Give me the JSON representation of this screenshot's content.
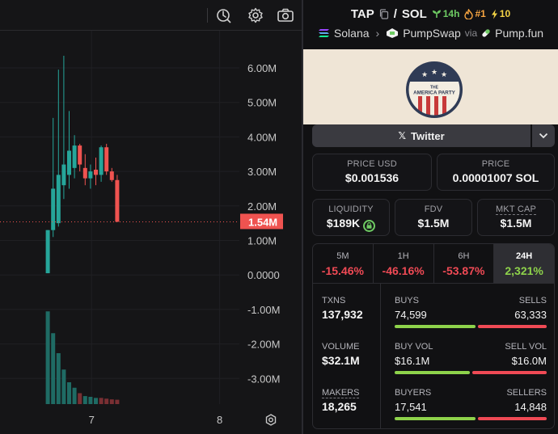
{
  "chart": {
    "price_axis": [
      "6.00M",
      "5.00M",
      "4.00M",
      "3.00M",
      "2.00M",
      "1.00M",
      "0.0000",
      "-1.00M",
      "-2.00M",
      "-3.00M"
    ],
    "current_price_label": "1.54M",
    "time_axis": [
      "7",
      "8"
    ],
    "colors": {
      "up": "#26a69a",
      "down": "#ef5350",
      "price_line": "#ef5350"
    }
  },
  "chart_data": {
    "type": "candlestick",
    "title": "",
    "y_unit": "market cap (M)",
    "ylim": [
      -3.7,
      6.9
    ],
    "xlim": [
      0,
      42
    ],
    "x_ticks": [
      {
        "label": "7",
        "x": 12
      },
      {
        "label": "8",
        "x": 36
      }
    ],
    "candles": [
      {
        "x": 1,
        "open": 0.05,
        "high": 1.3,
        "low": 0.05,
        "close": 1.3
      },
      {
        "x": 2,
        "open": 1.3,
        "high": 4.55,
        "low": 1.1,
        "close": 2.5
      },
      {
        "x": 3,
        "open": 1.5,
        "high": 5.95,
        "low": 1.4,
        "close": 2.9
      },
      {
        "x": 4,
        "open": 2.6,
        "high": 6.35,
        "low": 2.2,
        "close": 3.2
      },
      {
        "x": 5,
        "open": 2.9,
        "high": 4.75,
        "low": 2.5,
        "close": 3.6
      },
      {
        "x": 6,
        "open": 3.1,
        "high": 4.05,
        "low": 2.8,
        "close": 3.75
      },
      {
        "x": 7,
        "open": 3.75,
        "high": 3.8,
        "low": 3.0,
        "close": 3.2
      },
      {
        "x": 8,
        "open": 3.1,
        "high": 3.5,
        "low": 2.6,
        "close": 2.8
      },
      {
        "x": 9,
        "open": 2.8,
        "high": 3.2,
        "low": 2.5,
        "close": 3.0
      },
      {
        "x": 10,
        "open": 3.05,
        "high": 3.4,
        "low": 2.6,
        "close": 2.9
      },
      {
        "x": 11,
        "open": 2.9,
        "high": 3.75,
        "low": 2.7,
        "close": 3.7
      },
      {
        "x": 12,
        "open": 3.7,
        "high": 3.8,
        "low": 2.9,
        "close": 3.0
      },
      {
        "x": 13,
        "open": 3.0,
        "high": 3.1,
        "low": 2.7,
        "close": 2.75
      },
      {
        "x": 14,
        "open": 2.75,
        "high": 2.9,
        "low": 1.54,
        "close": 1.54
      }
    ],
    "volume": [
      {
        "x": 1,
        "value": 2.55,
        "direction": "up"
      },
      {
        "x": 2,
        "value": 1.95,
        "direction": "up"
      },
      {
        "x": 3,
        "value": 1.4,
        "direction": "up"
      },
      {
        "x": 4,
        "value": 0.95,
        "direction": "up"
      },
      {
        "x": 5,
        "value": 0.6,
        "direction": "up"
      },
      {
        "x": 6,
        "value": 0.45,
        "direction": "up"
      },
      {
        "x": 7,
        "value": 0.3,
        "direction": "down"
      },
      {
        "x": 8,
        "value": 0.22,
        "direction": "up"
      },
      {
        "x": 9,
        "value": 0.2,
        "direction": "up"
      },
      {
        "x": 10,
        "value": 0.17,
        "direction": "up"
      },
      {
        "x": 11,
        "value": 0.17,
        "direction": "down"
      },
      {
        "x": 12,
        "value": 0.15,
        "direction": "down"
      },
      {
        "x": 13,
        "value": 0.13,
        "direction": "down"
      },
      {
        "x": 14,
        "value": 0.12,
        "direction": "down"
      }
    ],
    "current_value": 1.54
  },
  "pair": {
    "base": "TAP",
    "quote": "SOL",
    "age": "14h",
    "rank": "#1",
    "boosts": "10",
    "chain": "Solana",
    "dex": "PumpSwap",
    "via_label": "via",
    "launchpad": "Pump.fun",
    "logo_text": "THE AMERICA PARTY"
  },
  "links": {
    "twitter": "Twitter"
  },
  "prices": {
    "usd_label": "PRICE USD",
    "usd_value": "$0.001536",
    "native_label": "PRICE",
    "native_value": "0.00001007 SOL"
  },
  "metrics": {
    "liquidity_label": "LIQUIDITY",
    "liquidity_value": "$189K",
    "fdv_label": "FDV",
    "fdv_value": "$1.5M",
    "mktcap_label": "MKT CAP",
    "mktcap_value": "$1.5M"
  },
  "timeframes": [
    {
      "label": "5M",
      "value": "-15.46%"
    },
    {
      "label": "1H",
      "value": "-46.16%"
    },
    {
      "label": "6H",
      "value": "-53.87%"
    },
    {
      "label": "24H",
      "value": "2,321%"
    }
  ],
  "txns": {
    "txns_label": "TXNS",
    "txns_value": "137,932",
    "volume_label": "VOLUME",
    "volume_value": "$32.1M",
    "makers_label": "MAKERS",
    "makers_value": "18,265",
    "buys_label": "BUYS",
    "buys_value": "74,599",
    "sells_label": "SELLS",
    "sells_value": "63,333",
    "buy_vol_label": "BUY VOL",
    "buy_vol_value": "$16.1M",
    "sell_vol_label": "SELL VOL",
    "sell_vol_value": "$16.0M",
    "buyers_label": "BUYERS",
    "buyers_value": "17,541",
    "sellers_label": "SELLERS",
    "sellers_value": "14,848",
    "buy_ratio": 0.541,
    "buy_vol_ratio": 0.502,
    "buyer_ratio": 0.542
  }
}
